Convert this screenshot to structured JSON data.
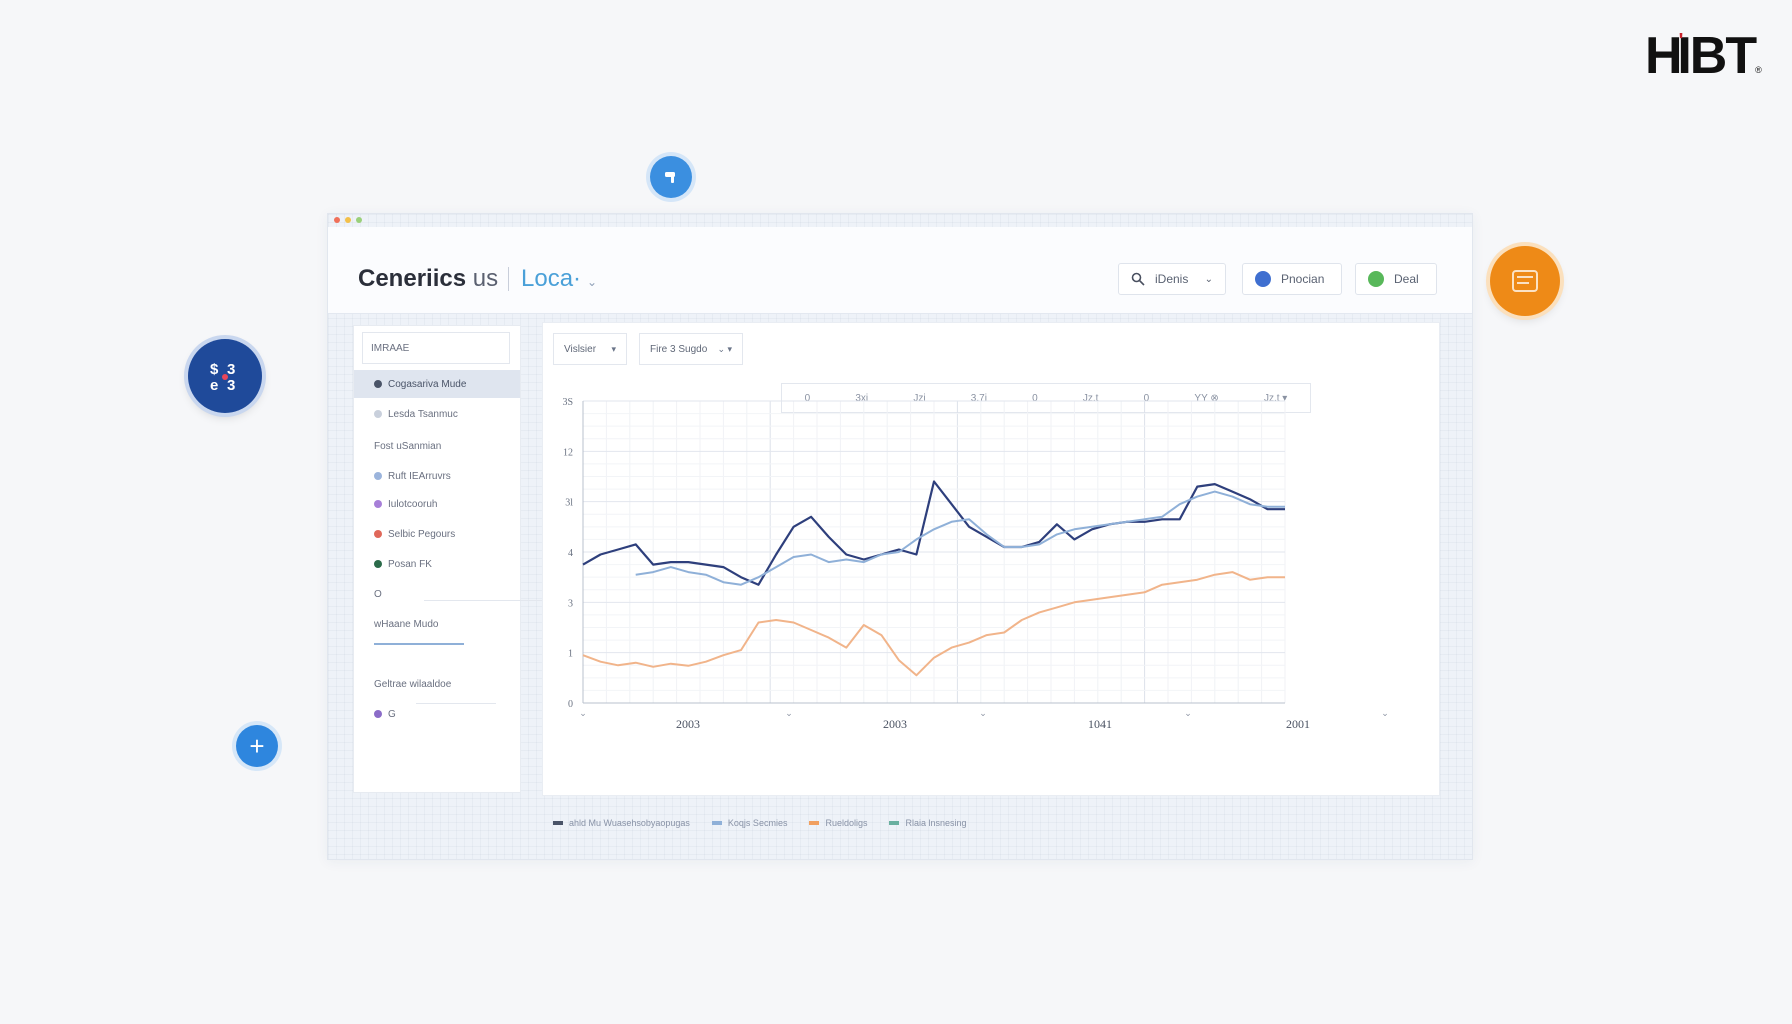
{
  "brand": {
    "logo_text": "HIBT",
    "logo_accent": "'",
    "logo_reg": "®"
  },
  "window": {
    "dot_colors": [
      "#f0705a",
      "#f3c04a",
      "#9ad07a"
    ],
    "title_main": "Ceneriics",
    "title_suffix": "us",
    "location_label": "Loca·",
    "header_buttons": [
      {
        "label": "iDenis",
        "icon": "search-icon",
        "has_chevron": true
      },
      {
        "label": "Pnocian",
        "icon": "gear-icon",
        "icon_color": "#3f6fd0"
      },
      {
        "label": "Deal",
        "icon": "circle-icon",
        "icon_color": "#58b85a"
      }
    ]
  },
  "sidebar": {
    "search_value": "IMRAAE",
    "items": [
      {
        "label": "Cogasariva Mude",
        "dot": "#4a5468",
        "active": true
      },
      {
        "label": "Lesda Tsanmuc",
        "dot": "#c9d0dc"
      },
      {
        "label": "Fost uSanmian",
        "dot": ""
      },
      {
        "label": "Ruft IEArruvrs",
        "dot": "#9bb4dc"
      },
      {
        "label": "Iulotcooruh",
        "dot": "#a77fd8"
      },
      {
        "label": "Selbic Pegours",
        "dot": "#e0685a"
      },
      {
        "label": "Posan FK",
        "dot": "#2b6b4a"
      },
      {
        "label": "O",
        "dot": ""
      },
      {
        "label": "wHaane Mudo",
        "dot": ""
      },
      {
        "label": "Geltrae wilaaldoe",
        "dot": ""
      },
      {
        "label": "G",
        "dot": "#8b6cc8"
      }
    ]
  },
  "chart_panel": {
    "dropdowns": [
      {
        "label": "Vislsier"
      },
      {
        "label": "Fire 3 Sugdo"
      }
    ],
    "toolbar_items": [
      "0",
      "3xi",
      "Jzi",
      "3.7i",
      "0",
      "Jz.t",
      "0",
      "YY ⊗",
      "Jz.t ▾"
    ]
  },
  "chart_data": {
    "type": "line",
    "y_tick_labels": [
      "0",
      "1",
      "3",
      "4",
      "3l",
      "12",
      "3S"
    ],
    "x_tick_labels": [
      "2003",
      "2003",
      "1041",
      "2001"
    ],
    "ylim": [
      0,
      6
    ],
    "series": [
      {
        "color": "#2e3f7c",
        "values": [
          2.75,
          2.95,
          3.05,
          3.15,
          2.75,
          2.8,
          2.8,
          2.75,
          2.7,
          2.5,
          2.35,
          2.95,
          3.5,
          3.7,
          3.3,
          2.95,
          2.85,
          2.95,
          3.05,
          2.95,
          4.4,
          3.95,
          3.5,
          3.3,
          3.1,
          3.1,
          3.2,
          3.55,
          3.25,
          3.45,
          3.55,
          3.6,
          3.6,
          3.65,
          3.65,
          4.3,
          4.35,
          4.2,
          4.05,
          3.85,
          3.85
        ]
      },
      {
        "color": "#8fb0d8",
        "values": [
          2.5,
          2.55,
          2.5,
          2.55,
          2.6,
          2.7,
          2.6,
          2.55,
          2.4,
          2.35,
          2.5,
          2.7,
          2.9,
          2.95,
          2.8,
          2.85,
          2.8,
          2.95,
          3.0,
          3.25,
          3.45,
          3.6,
          3.65,
          3.35,
          3.1,
          3.1,
          3.15,
          3.35,
          3.45,
          3.5,
          3.55,
          3.6,
          3.65,
          3.7,
          3.95,
          4.1,
          4.2,
          4.1,
          3.95,
          3.9,
          3.9
        ],
        "start_index": 3
      },
      {
        "color": "#f1b48a",
        "values": [
          0.95,
          0.82,
          0.75,
          0.8,
          0.72,
          0.78,
          0.74,
          0.82,
          0.95,
          1.05,
          1.6,
          1.65,
          1.6,
          1.45,
          1.3,
          1.1,
          1.55,
          1.35,
          0.85,
          0.55,
          0.9,
          1.1,
          1.2,
          1.35,
          1.4,
          1.65,
          1.8,
          1.9,
          2.0,
          2.05,
          2.1,
          2.15,
          2.2,
          2.35,
          2.4,
          2.45,
          2.55,
          2.6,
          2.45,
          2.5,
          2.5
        ]
      }
    ]
  },
  "legend": [
    {
      "label": "ahld Mu Wuasehsobyaopugas",
      "color": "#4a5468"
    },
    {
      "label": "Koqjs Secmies",
      "color": "#8fb0d8"
    },
    {
      "label": "Rueldoligs",
      "color": "#f1a060"
    },
    {
      "label": "Rlaia lnsnesing",
      "color": "#6ab0a0"
    }
  ],
  "floaters": {
    "top_icon": "wrench-icon",
    "left_icon": "currency-exchange-icon",
    "plus_label": "+",
    "right_icon": "coin-icon"
  }
}
